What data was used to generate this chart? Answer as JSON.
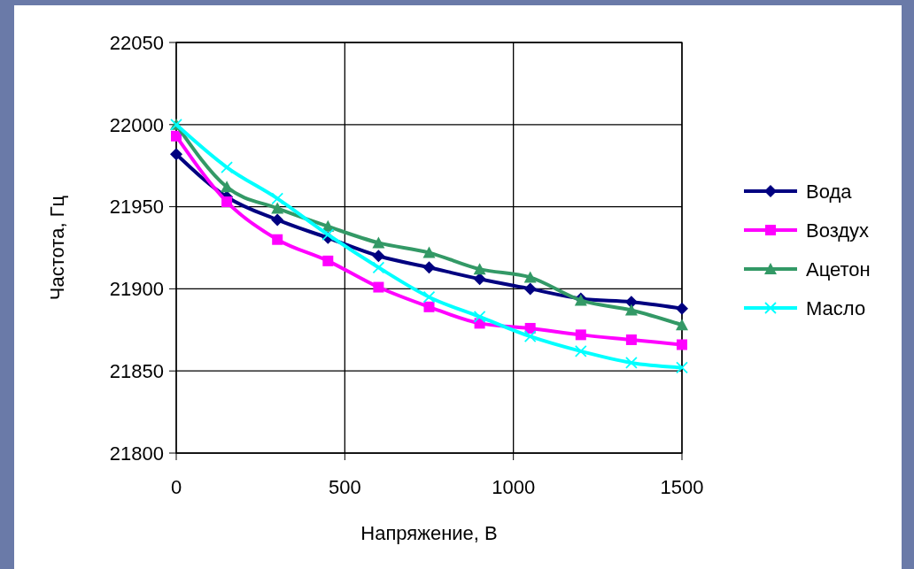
{
  "chart_data": {
    "type": "line",
    "xlabel": "Напряжение, В",
    "ylabel": "Частота, Гц",
    "x": [
      0,
      150,
      300,
      450,
      600,
      750,
      900,
      1050,
      1200,
      1350,
      1500
    ],
    "series": [
      {
        "name": "Вода",
        "color": "#000080",
        "marker": "diamond",
        "values": [
          21982,
          21956,
          21942,
          21931,
          21920,
          21913,
          21906,
          21900,
          21894,
          21892,
          21888
        ]
      },
      {
        "name": "Воздух",
        "color": "#ff00ff",
        "marker": "square",
        "values": [
          21993,
          21953,
          21930,
          21917,
          21901,
          21889,
          21879,
          21876,
          21872,
          21869,
          21866
        ]
      },
      {
        "name": "Ацетон",
        "color": "#339966",
        "marker": "triangle",
        "values": [
          22000,
          21962,
          21949,
          21938,
          21928,
          21922,
          21912,
          21907,
          21893,
          21887,
          21878
        ]
      },
      {
        "name": "Масло",
        "color": "#00ffff",
        "marker": "cross",
        "values": [
          22000,
          21974,
          21955,
          21933,
          21913,
          21895,
          21883,
          21871,
          21862,
          21855,
          21852
        ]
      }
    ],
    "xlim": [
      0,
      1500
    ],
    "xticks": [
      0,
      500,
      1000,
      1500
    ],
    "ylim": [
      21800,
      22050
    ],
    "yticks": [
      21800,
      21850,
      21900,
      21950,
      22000,
      22050
    ],
    "grid": true,
    "legend": "right",
    "line_style": "solid"
  }
}
